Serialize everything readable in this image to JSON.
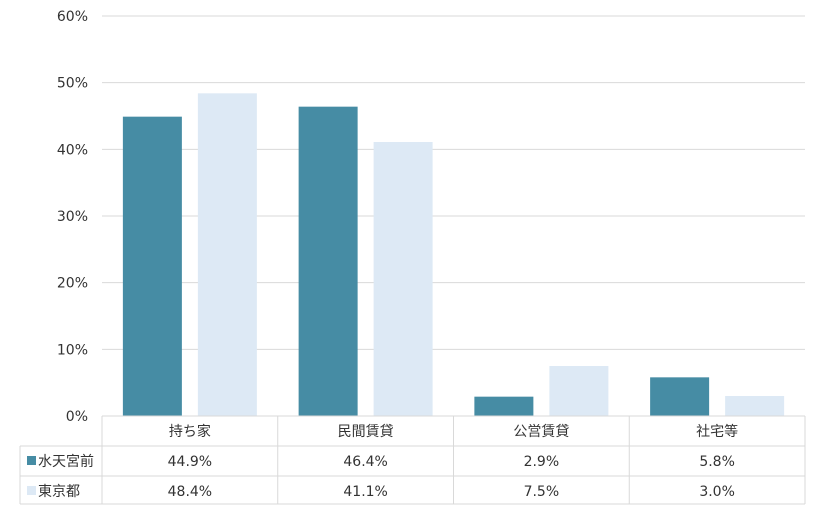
{
  "chart_data": {
    "type": "bar",
    "categories": [
      "持ち家",
      "民間賃貸",
      "公営賃貸",
      "社宅等"
    ],
    "series": [
      {
        "name": "水天宮前",
        "values": [
          44.9,
          46.4,
          2.9,
          5.8
        ],
        "labels": [
          "44.9%",
          "46.4%",
          "2.9%",
          "5.8%"
        ],
        "color": "#468ca4"
      },
      {
        "name": "東京都",
        "values": [
          48.4,
          41.1,
          7.5,
          3.0
        ],
        "labels": [
          "48.4%",
          "41.1%",
          "7.5%",
          "3.0%"
        ],
        "color": "#dde9f5"
      }
    ],
    "y_ticks": [
      "0%",
      "10%",
      "20%",
      "30%",
      "40%",
      "50%",
      "60%"
    ],
    "ylim": [
      0,
      60
    ],
    "grid": true,
    "legend": "data-table",
    "colors": {
      "grid": "#d9d9d9",
      "text": "#333333"
    }
  }
}
